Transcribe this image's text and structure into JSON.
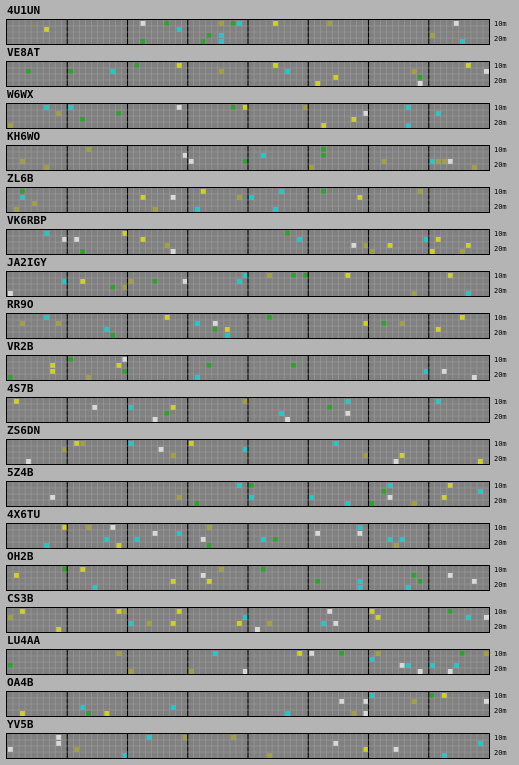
{
  "bands": {
    "top": "10m",
    "bottom": "20m"
  },
  "colors": {
    "background": "#b4b4b4",
    "grid_bg": "#808080",
    "grid_line": "#a0a0a0",
    "hour_line": "#000000",
    "cyan": "#20c8c8",
    "yellow": "#d0d020",
    "olive": "#a0a040",
    "green": "#30a030",
    "light": "#d8d8d8"
  },
  "beacons": [
    {
      "callsign": "4U1UN"
    },
    {
      "callsign": "VE8AT"
    },
    {
      "callsign": "W6WX"
    },
    {
      "callsign": "KH6WO"
    },
    {
      "callsign": "ZL6B"
    },
    {
      "callsign": "VK6RBP"
    },
    {
      "callsign": "JA2IGY"
    },
    {
      "callsign": "RR9O"
    },
    {
      "callsign": "VR2B"
    },
    {
      "callsign": "4S7B"
    },
    {
      "callsign": "ZS6DN"
    },
    {
      "callsign": "5Z4B"
    },
    {
      "callsign": "4X6TU"
    },
    {
      "callsign": "OH2B"
    },
    {
      "callsign": "CS3B"
    },
    {
      "callsign": "LU4AA"
    },
    {
      "callsign": "OA4B"
    },
    {
      "callsign": "YV5B"
    }
  ]
}
